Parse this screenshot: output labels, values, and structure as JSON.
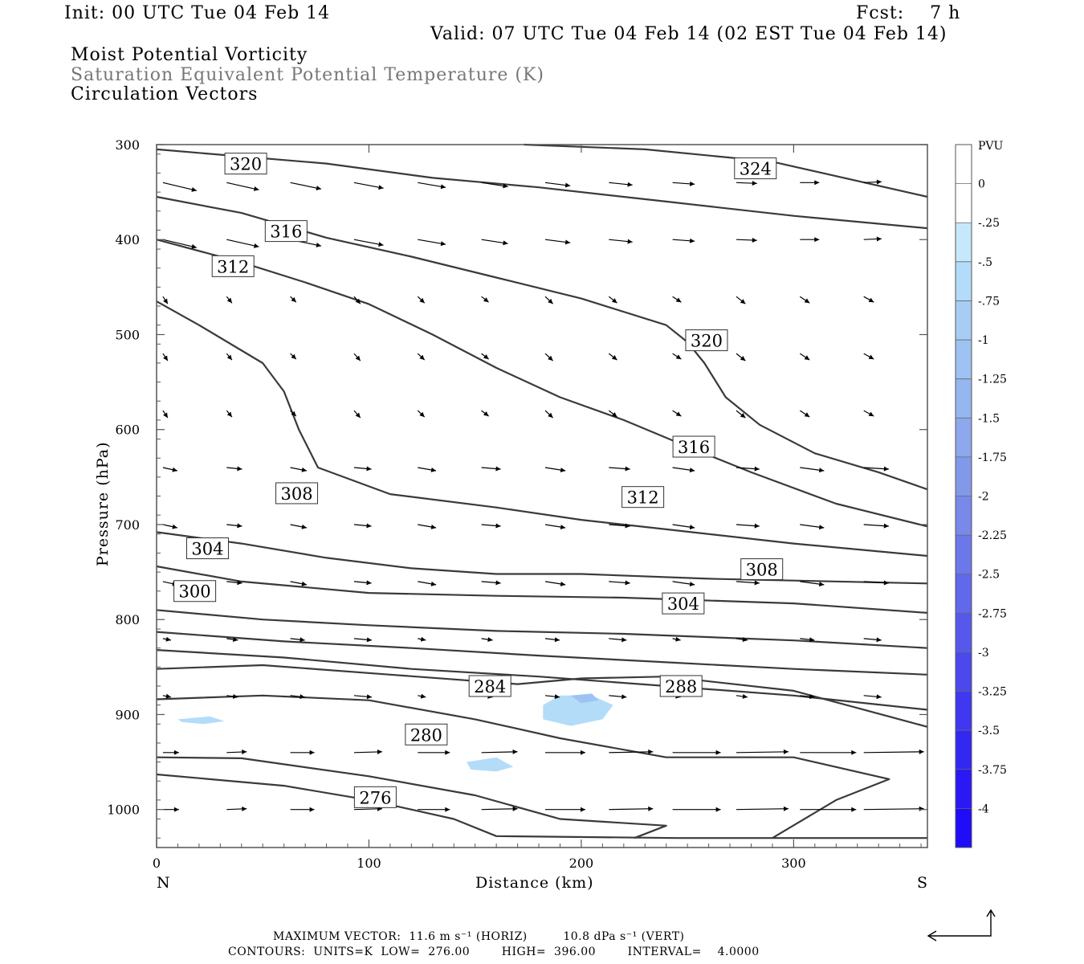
{
  "header": {
    "init": "Init: 00 UTC Tue 04 Feb 14",
    "fcst": "Fcst:    7 h",
    "valid": "Valid: 07 UTC Tue 04 Feb 14 (02 EST Tue 04 Feb 14)"
  },
  "fields": {
    "line1": "Moist Potential Vorticity",
    "line2": "Saturation Equivalent Potential Temperature (K)",
    "line3": "Circulation Vectors"
  },
  "colors": {
    "contour": "#3a3a3a",
    "pv_fill_light": "#b3dcf8",
    "pv_fill_mid": "#9ec2f2",
    "axis": "#555555",
    "header_gray": "#777777"
  },
  "chart_data": {
    "type": "contour",
    "xlabel": "Distance (km)",
    "ylabel": "Pressure (hPa)",
    "xlim": [
      0,
      363
    ],
    "ylim": [
      1040,
      300
    ],
    "x_ticks": [
      "0",
      "100",
      "200",
      "300"
    ],
    "y_ticks": [
      "300",
      "400",
      "500",
      "600",
      "700",
      "800",
      "900",
      "1000"
    ],
    "left_end_label": "N",
    "right_end_label": "S",
    "contour_labels": [
      {
        "text": "320",
        "x": 42,
        "p": 320
      },
      {
        "text": "324",
        "x": 282,
        "p": 325
      },
      {
        "text": "316",
        "x": 61,
        "p": 391
      },
      {
        "text": "312",
        "x": 36,
        "p": 428
      },
      {
        "text": "320",
        "x": 259,
        "p": 506
      },
      {
        "text": "316",
        "x": 253,
        "p": 618
      },
      {
        "text": "308",
        "x": 66,
        "p": 667
      },
      {
        "text": "312",
        "x": 229,
        "p": 671
      },
      {
        "text": "304",
        "x": 24,
        "p": 725
      },
      {
        "text": "308",
        "x": 285,
        "p": 747
      },
      {
        "text": "300",
        "x": 18,
        "p": 770
      },
      {
        "text": "304",
        "x": 248,
        "p": 783
      },
      {
        "text": "284",
        "x": 157,
        "p": 870
      },
      {
        "text": "288",
        "x": 247,
        "p": 870
      },
      {
        "text": "280",
        "x": 127,
        "p": 921
      },
      {
        "text": "276",
        "x": 103,
        "p": 987
      }
    ],
    "contours": [
      [
        [
          0,
          305
        ],
        [
          80,
          320
        ],
        [
          130,
          335
        ],
        [
          180,
          345
        ],
        [
          240,
          360
        ],
        [
          300,
          375
        ],
        [
          363,
          388
        ]
      ],
      [
        [
          173,
          300
        ],
        [
          230,
          305
        ],
        [
          290,
          318
        ],
        [
          363,
          355
        ]
      ],
      [
        [
          0,
          355
        ],
        [
          40,
          372
        ],
        [
          80,
          398
        ],
        [
          120,
          418
        ],
        [
          160,
          440
        ],
        [
          200,
          462
        ],
        [
          240,
          490
        ],
        [
          250,
          508
        ],
        [
          258,
          530
        ],
        [
          268,
          566
        ],
        [
          284,
          595
        ],
        [
          310,
          625
        ],
        [
          340,
          645
        ],
        [
          363,
          663
        ]
      ],
      [
        [
          0,
          400
        ],
        [
          40,
          424
        ],
        [
          70,
          445
        ],
        [
          100,
          468
        ],
        [
          130,
          500
        ],
        [
          160,
          535
        ],
        [
          190,
          566
        ],
        [
          220,
          590
        ],
        [
          250,
          618
        ],
        [
          280,
          645
        ],
        [
          320,
          678
        ],
        [
          363,
          702
        ]
      ],
      [
        [
          0,
          465
        ],
        [
          20,
          490
        ],
        [
          50,
          530
        ],
        [
          60,
          560
        ],
        [
          67,
          600
        ],
        [
          76,
          640
        ],
        [
          110,
          668
        ],
        [
          160,
          682
        ],
        [
          200,
          695
        ],
        [
          240,
          705
        ],
        [
          300,
          720
        ],
        [
          363,
          733
        ]
      ],
      [
        [
          0,
          708
        ],
        [
          40,
          720
        ],
        [
          80,
          735
        ],
        [
          120,
          746
        ],
        [
          160,
          752
        ],
        [
          200,
          752
        ],
        [
          260,
          757
        ],
        [
          363,
          762
        ]
      ],
      [
        [
          0,
          744
        ],
        [
          40,
          760
        ],
        [
          100,
          772
        ],
        [
          160,
          775
        ],
        [
          220,
          777
        ],
        [
          300,
          783
        ],
        [
          363,
          793
        ]
      ],
      [
        [
          0,
          790
        ],
        [
          50,
          800
        ],
        [
          100,
          806
        ],
        [
          160,
          812
        ],
        [
          220,
          815
        ],
        [
          300,
          822
        ],
        [
          363,
          830
        ]
      ],
      [
        [
          0,
          813
        ],
        [
          60,
          823
        ],
        [
          120,
          830
        ],
        [
          180,
          838
        ],
        [
          240,
          845
        ],
        [
          300,
          852
        ],
        [
          363,
          858
        ]
      ],
      [
        [
          0,
          832
        ],
        [
          60,
          840
        ],
        [
          120,
          852
        ],
        [
          180,
          860
        ],
        [
          240,
          870
        ],
        [
          300,
          880
        ],
        [
          363,
          895
        ]
      ],
      [
        [
          0,
          852
        ],
        [
          50,
          848
        ],
        [
          110,
          858
        ],
        [
          170,
          868
        ],
        [
          200,
          862
        ],
        [
          240,
          860
        ],
        [
          300,
          875
        ],
        [
          363,
          913
        ]
      ],
      [
        [
          0,
          884
        ],
        [
          50,
          880
        ],
        [
          100,
          885
        ],
        [
          150,
          905
        ],
        [
          190,
          925
        ],
        [
          240,
          945
        ],
        [
          300,
          945
        ],
        [
          345,
          968
        ],
        [
          320,
          990
        ],
        [
          290,
          1030
        ]
      ],
      [
        [
          0,
          945
        ],
        [
          40,
          946
        ],
        [
          100,
          965
        ],
        [
          150,
          985
        ],
        [
          190,
          1010
        ],
        [
          240,
          1017
        ],
        [
          225,
          1030
        ]
      ],
      [
        [
          0,
          963
        ],
        [
          60,
          975
        ],
        [
          100,
          990
        ],
        [
          140,
          1010
        ],
        [
          160,
          1028
        ],
        [
          245,
          1030
        ],
        [
          363,
          1030
        ]
      ]
    ],
    "pv_shading": [
      {
        "level": "-0.25",
        "region": [
          [
            182,
            890
          ],
          [
            190,
            880
          ],
          [
            205,
            880
          ],
          [
            215,
            890
          ],
          [
            210,
            905
          ],
          [
            195,
            912
          ],
          [
            182,
            905
          ]
        ]
      },
      {
        "level": "-0.25",
        "region": [
          [
            146,
            950
          ],
          [
            160,
            945
          ],
          [
            168,
            955
          ],
          [
            160,
            960
          ],
          [
            148,
            958
          ]
        ]
      },
      {
        "level": "-0.25",
        "region": [
          [
            10,
            905
          ],
          [
            25,
            902
          ],
          [
            32,
            907
          ],
          [
            22,
            910
          ],
          [
            12,
            908
          ]
        ]
      },
      {
        "level": "-0.5",
        "region": [
          [
            195,
            880
          ],
          [
            205,
            878
          ],
          [
            208,
            885
          ],
          [
            200,
            888
          ]
        ]
      }
    ],
    "colorbar": {
      "title": "PVU",
      "labels": [
        "0",
        "-.25",
        "-.5",
        "-.75",
        "-1",
        "-1.25",
        "-1.5",
        "-1.75",
        "-2",
        "-2.25",
        "-2.5",
        "-2.75",
        "-3",
        "-3.25",
        "-3.5",
        "-3.75",
        "-4"
      ],
      "colors": [
        "#ffffff",
        "#ffffff",
        "#c6e8fb",
        "#b3dcf8",
        "#a8cdf5",
        "#9ec2f2",
        "#96b6ef",
        "#8da8ec",
        "#8299ea",
        "#7889ea",
        "#6c78ea",
        "#6168eb",
        "#5658ec",
        "#4b48ee",
        "#3f38f0",
        "#3328f2",
        "#2a18f5",
        "#1f0cf8"
      ]
    }
  },
  "footer": {
    "line1": "MAXIMUM VECTOR:  11.6 m s⁻¹ (HORIZ)         10.8 dPa s⁻¹ (VERT)",
    "line2": "CONTOURS:  UNITS=K  LOW=  276.00        HIGH=  396.00        INTERVAL=    4.0000"
  }
}
